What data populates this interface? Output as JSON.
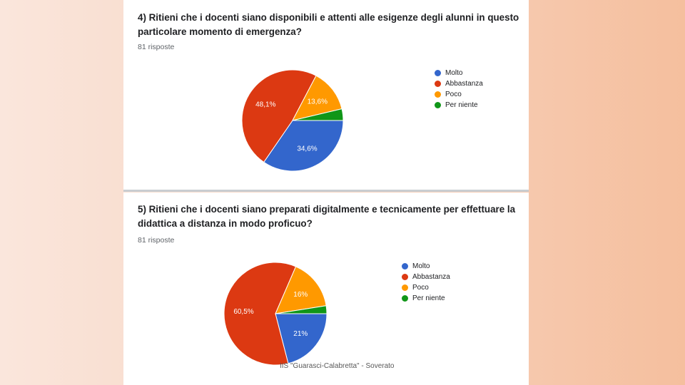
{
  "colors": {
    "series": [
      "#3366cc",
      "#dc3912",
      "#ff9900",
      "#109618"
    ],
    "label_on_slice": "#ffffff"
  },
  "questions": [
    {
      "title": "4) Ritieni che i docenti siano disponibili e attenti alle esigenze degli alunni in questo particolare momento di emergenza?",
      "responses": "81 risposte"
    },
    {
      "title": "5) Ritieni che i docenti siano preparati digitalmente e tecnicamente per effettuare la didattica a distanza in modo proficuo?",
      "responses": "81 risposte"
    }
  ],
  "chart_data": [
    {
      "type": "pie",
      "categories": [
        "Molto",
        "Abbastanza",
        "Poco",
        "Per niente"
      ],
      "values": [
        34.6,
        48.1,
        13.6,
        3.7
      ],
      "labels": [
        "34,6%",
        "48,1%",
        "13,6%",
        ""
      ],
      "legend": "right"
    },
    {
      "type": "pie",
      "categories": [
        "Molto",
        "Abbastanza",
        "Poco",
        "Per niente"
      ],
      "values": [
        21,
        60.5,
        16,
        2.5
      ],
      "labels": [
        "21%",
        "60,5%",
        "16%",
        ""
      ],
      "legend": "right"
    }
  ],
  "footer": "IIS \"Guarasci-Calabretta\" - Soverato"
}
